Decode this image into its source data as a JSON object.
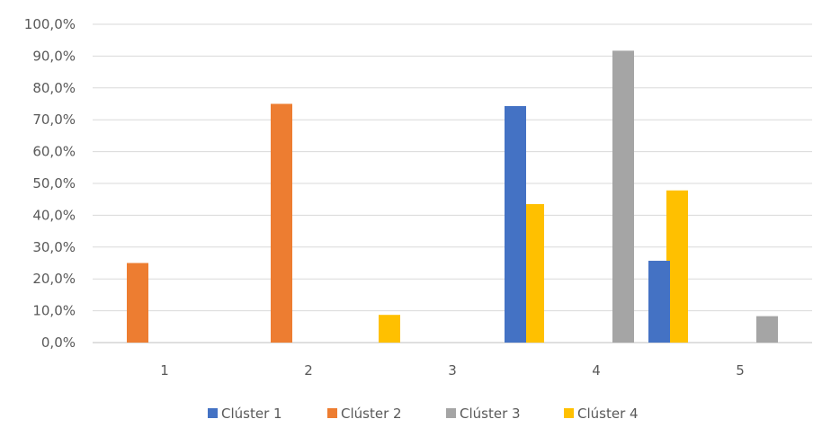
{
  "chart_data": {
    "type": "bar",
    "title": "",
    "xlabel": "",
    "ylabel": "",
    "categories": [
      "1",
      "2",
      "3",
      "4",
      "5"
    ],
    "ylim": [
      0,
      100
    ],
    "y_ticks": [
      0,
      10,
      20,
      30,
      40,
      50,
      60,
      70,
      80,
      90,
      100
    ],
    "y_tick_labels": [
      "0,0%",
      "10,0%",
      "20,0%",
      "30,0%",
      "40,0%",
      "50,0%",
      "60,0%",
      "70,0%",
      "80,0%",
      "90,0%",
      "100,0%"
    ],
    "grid": true,
    "legend_position": "bottom",
    "series": [
      {
        "name": "Clúster 1",
        "color": "#4472c4",
        "values": [
          0,
          0,
          0,
          74.3,
          25.7
        ]
      },
      {
        "name": "Clúster 2",
        "color": "#ed7d31",
        "values": [
          25.0,
          75.0,
          0,
          0,
          0
        ]
      },
      {
        "name": "Clúster 3",
        "color": "#a5a5a5",
        "values": [
          0,
          0,
          0,
          91.7,
          8.3
        ]
      },
      {
        "name": "Clúster 4",
        "color": "#ffc000",
        "values": [
          0,
          8.7,
          43.5,
          47.8,
          0
        ]
      }
    ]
  }
}
